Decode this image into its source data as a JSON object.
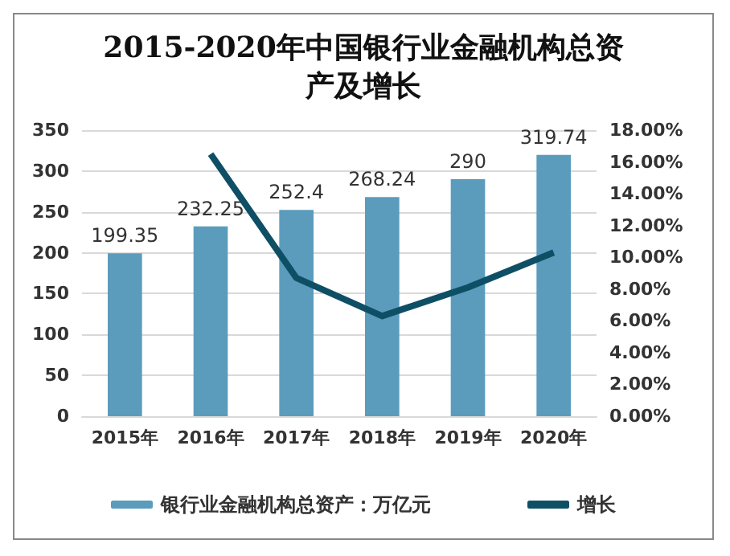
{
  "chart_data": {
    "type": "bar",
    "title": "2015-2020年中国银行业金融机构总资产及增长",
    "categories": [
      "2015年",
      "2016年",
      "2017年",
      "2018年",
      "2019年",
      "2020年"
    ],
    "series": [
      {
        "name": "银行业金融机构总资产：万亿元",
        "color": "#5b9cbd",
        "values": [
          199.35,
          232.25,
          252.4,
          268.24,
          290,
          319.74
        ],
        "data_labels": true
      },
      {
        "name": "增长",
        "type": "line",
        "axis": "y2",
        "color": "#0f4f66",
        "values": [
          null,
          16.5,
          8.7,
          6.3,
          8.1,
          10.3
        ],
        "marker": "none"
      }
    ],
    "ylim": [
      0,
      350
    ],
    "yticks": [
      0,
      50,
      100,
      150,
      200,
      250,
      300,
      350
    ],
    "y2lim": [
      0,
      18
    ],
    "y2ticks": [
      {
        "value": 0,
        "label": "0.00%"
      },
      {
        "value": 2,
        "label": "2.00%"
      },
      {
        "value": 4,
        "label": "4.00%"
      },
      {
        "value": 6,
        "label": "6.00%"
      },
      {
        "value": 8,
        "label": "8.00%"
      },
      {
        "value": 10,
        "label": "10.00%"
      },
      {
        "value": 12,
        "label": "12.00%"
      },
      {
        "value": 14,
        "label": "14.00%"
      },
      {
        "value": 16,
        "label": "16.00%"
      },
      {
        "value": 18,
        "label": "18.00%"
      }
    ],
    "grid": "y",
    "legend": "bottom"
  }
}
